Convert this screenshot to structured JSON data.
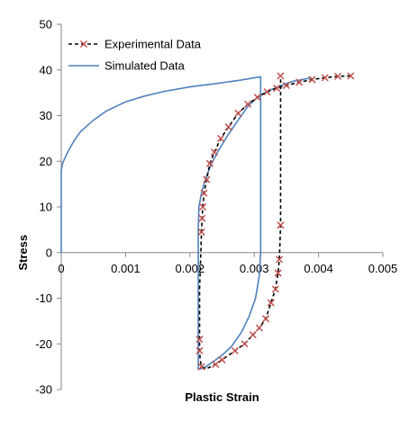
{
  "chart_data": {
    "type": "line",
    "title": "",
    "xlabel": "Plastic Strain",
    "ylabel": "Stress",
    "xlim": [
      0,
      0.005
    ],
    "ylim": [
      -30,
      50
    ],
    "xticks": [
      0,
      0.001,
      0.002,
      0.003,
      0.004,
      0.005
    ],
    "xtick_labels": [
      "0",
      "0.001",
      "0.002",
      "0.003",
      "0.004",
      "0.005"
    ],
    "yticks": [
      -30,
      -20,
      -10,
      0,
      10,
      20,
      30,
      40,
      50
    ],
    "ytick_labels": [
      "-30",
      "-20",
      "-10",
      "0",
      "10",
      "20",
      "30",
      "40",
      "50"
    ],
    "grid": false,
    "legend_position": "top-left",
    "series": [
      {
        "name": "Experimental Data",
        "color": "#000000",
        "marker_color": "#c0504d",
        "line_style": "dashed",
        "marker": "x",
        "points": [
          [
            0.0045,
            38.7
          ],
          [
            0.0043,
            38.6
          ],
          [
            0.0041,
            38.3
          ],
          [
            0.0039,
            37.9
          ],
          [
            0.0037,
            37.3
          ],
          [
            0.0035,
            36.6
          ],
          [
            0.00335,
            36.0
          ],
          [
            0.0032,
            35.2
          ],
          [
            0.00305,
            34.0
          ],
          [
            0.0029,
            32.5
          ],
          [
            0.00275,
            30.5
          ],
          [
            0.0026,
            27.5
          ],
          [
            0.00248,
            25.0
          ],
          [
            0.00238,
            22.0
          ],
          [
            0.00231,
            19.5
          ],
          [
            0.00226,
            16.0
          ],
          [
            0.00222,
            13.0
          ],
          [
            0.0022,
            10.0
          ],
          [
            0.00219,
            7.5
          ],
          [
            0.00218,
            4.5
          ],
          [
            0.00217,
            0.0
          ],
          [
            0.00216,
            -4.0
          ],
          [
            0.00215,
            -8.0
          ],
          [
            0.00215,
            -12.0
          ],
          [
            0.00215,
            -16.0
          ],
          [
            0.00215,
            -19.0
          ],
          [
            0.00215,
            -21.5
          ],
          [
            0.00216,
            -23.5
          ],
          [
            0.00218,
            -25.0
          ],
          [
            0.00225,
            -25.5
          ],
          [
            0.0024,
            -24.5
          ],
          [
            0.0025,
            -23.5
          ],
          [
            0.0026,
            -22.5
          ],
          [
            0.0027,
            -21.5
          ],
          [
            0.00285,
            -20.0
          ],
          [
            0.00298,
            -18.0
          ],
          [
            0.00308,
            -16.5
          ],
          [
            0.00318,
            -14.5
          ],
          [
            0.00326,
            -11.0
          ],
          [
            0.00333,
            -8.0
          ],
          [
            0.00337,
            -4.5
          ],
          [
            0.00339,
            -1.5
          ],
          [
            0.0034,
            2.0
          ],
          [
            0.00341,
            6.0
          ],
          [
            0.00341,
            13.0
          ],
          [
            0.00341,
            25.0
          ],
          [
            0.00341,
            38.7
          ]
        ],
        "marker_points": [
          [
            0.0045,
            38.7
          ],
          [
            0.0043,
            38.6
          ],
          [
            0.0041,
            38.3
          ],
          [
            0.0039,
            37.9
          ],
          [
            0.0037,
            37.3
          ],
          [
            0.0035,
            36.6
          ],
          [
            0.00335,
            36.0
          ],
          [
            0.0032,
            35.2
          ],
          [
            0.00305,
            34.0
          ],
          [
            0.0029,
            32.5
          ],
          [
            0.00275,
            30.5
          ],
          [
            0.0026,
            27.5
          ],
          [
            0.00248,
            25.0
          ],
          [
            0.00238,
            22.0
          ],
          [
            0.00231,
            19.5
          ],
          [
            0.00226,
            16.0
          ],
          [
            0.00222,
            13.0
          ],
          [
            0.0022,
            10.0
          ],
          [
            0.00219,
            7.5
          ],
          [
            0.00218,
            4.5
          ],
          [
            0.00215,
            -19.0
          ],
          [
            0.00215,
            -21.5
          ],
          [
            0.00218,
            -25.0
          ],
          [
            0.0024,
            -24.5
          ],
          [
            0.0025,
            -23.5
          ],
          [
            0.0027,
            -21.5
          ],
          [
            0.00285,
            -20.0
          ],
          [
            0.00298,
            -18.0
          ],
          [
            0.00308,
            -16.5
          ],
          [
            0.00318,
            -14.5
          ],
          [
            0.00326,
            -11.0
          ],
          [
            0.00333,
            -8.0
          ],
          [
            0.00337,
            -4.5
          ],
          [
            0.00339,
            -1.5
          ],
          [
            0.00341,
            6.0
          ],
          [
            0.00341,
            38.7
          ]
        ]
      },
      {
        "name": "Simulated Data",
        "color": "#4f81bd",
        "line_style": "solid",
        "marker": "none",
        "points": [
          [
            0.0,
            0.0
          ],
          [
            0.0,
            18.0
          ],
          [
            2e-05,
            19.5
          ],
          [
            5e-05,
            20.5
          ],
          [
            0.0001,
            22.0
          ],
          [
            0.0002,
            24.5
          ],
          [
            0.0003,
            26.5
          ],
          [
            0.0005,
            29.0
          ],
          [
            0.0007,
            31.0
          ],
          [
            0.001,
            33.0
          ],
          [
            0.0013,
            34.3
          ],
          [
            0.0016,
            35.3
          ],
          [
            0.002,
            36.3
          ],
          [
            0.0024,
            37.0
          ],
          [
            0.0028,
            37.8
          ],
          [
            0.0031,
            38.5
          ],
          [
            0.0031,
            30.0
          ],
          [
            0.0031,
            10.0
          ],
          [
            0.0031,
            0.0
          ],
          [
            0.00308,
            -5.0
          ],
          [
            0.00302,
            -10.0
          ],
          [
            0.00292,
            -14.0
          ],
          [
            0.0028,
            -17.5
          ],
          [
            0.00265,
            -20.5
          ],
          [
            0.0025,
            -22.5
          ],
          [
            0.00235,
            -24.0
          ],
          [
            0.00225,
            -25.0
          ],
          [
            0.00216,
            -25.5
          ],
          [
            0.00213,
            -25.5
          ],
          [
            0.00213,
            -10.0
          ],
          [
            0.00213,
            5.0
          ],
          [
            0.00214,
            10.0
          ],
          [
            0.00218,
            13.0
          ],
          [
            0.00224,
            16.0
          ],
          [
            0.00232,
            19.0
          ],
          [
            0.00243,
            22.0
          ],
          [
            0.00258,
            25.5
          ],
          [
            0.00275,
            29.0
          ],
          [
            0.0029,
            32.0
          ],
          [
            0.00305,
            34.0
          ],
          [
            0.0032,
            35.3
          ],
          [
            0.0034,
            36.5
          ],
          [
            0.0036,
            37.5
          ],
          [
            0.0039,
            38.3
          ]
        ]
      }
    ]
  }
}
